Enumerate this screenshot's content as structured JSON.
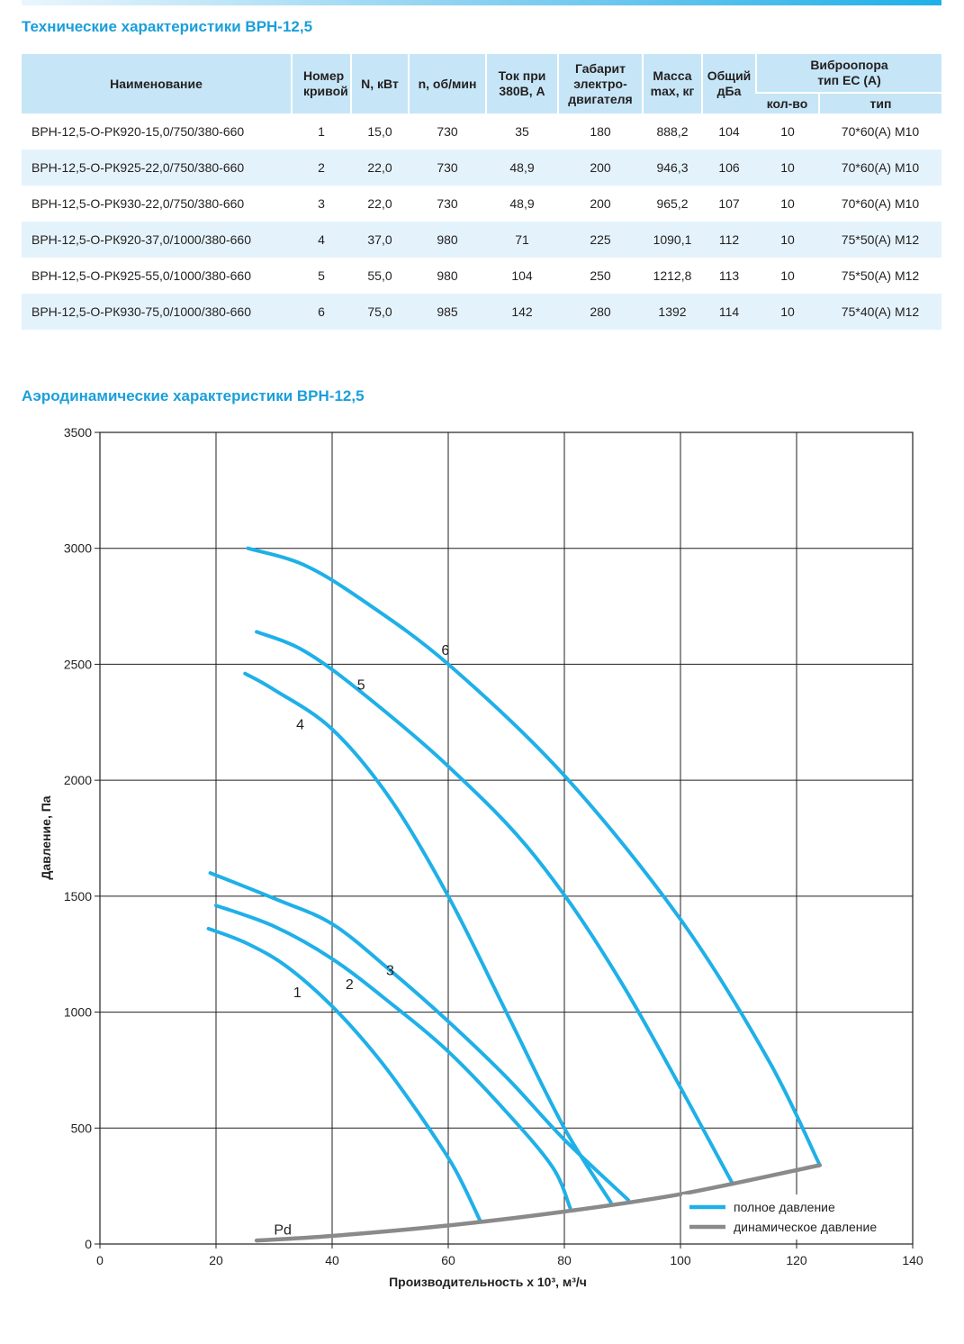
{
  "table_title": "Технические характеристики ВРН-12,5",
  "table": {
    "headers": {
      "name": "Наименование",
      "curve_no": "Номер кривой",
      "power": "N, кВт",
      "rpm": "n, об/мин",
      "current": "Ток при 380В, А",
      "motor_size": "Габарит электро-двигателя",
      "mass": "Масса max, кг",
      "noise": "Общий дБа",
      "vibro": "Виброопора тип ЕС (А)",
      "vibro_qty": "кол-во",
      "vibro_type": "тип"
    },
    "rows": [
      {
        "name": "ВРН-12,5-О-РК920-15,0/750/380-660",
        "curve": "1",
        "power": "15,0",
        "rpm": "730",
        "current": "35",
        "motor": "180",
        "mass": "888,2",
        "noise": "104",
        "qty": "10",
        "type": "70*60(А) М10"
      },
      {
        "name": "ВРН-12,5-О-РК925-22,0/750/380-660",
        "curve": "2",
        "power": "22,0",
        "rpm": "730",
        "current": "48,9",
        "motor": "200",
        "mass": "946,3",
        "noise": "106",
        "qty": "10",
        "type": "70*60(А) М10"
      },
      {
        "name": "ВРН-12,5-О-РК930-22,0/750/380-660",
        "curve": "3",
        "power": "22,0",
        "rpm": "730",
        "current": "48,9",
        "motor": "200",
        "mass": "965,2",
        "noise": "107",
        "qty": "10",
        "type": "70*60(А) М10"
      },
      {
        "name": "ВРН-12,5-О-РК920-37,0/1000/380-660",
        "curve": "4",
        "power": "37,0",
        "rpm": "980",
        "current": "71",
        "motor": "225",
        "mass": "1090,1",
        "noise": "112",
        "qty": "10",
        "type": "75*50(А) М12"
      },
      {
        "name": "ВРН-12,5-О-РК925-55,0/1000/380-660",
        "curve": "5",
        "power": "55,0",
        "rpm": "980",
        "current": "104",
        "motor": "250",
        "mass": "1212,8",
        "noise": "113",
        "qty": "10",
        "type": "75*50(А) М12"
      },
      {
        "name": "ВРН-12,5-О-РК930-75,0/1000/380-660",
        "curve": "6",
        "power": "75,0",
        "rpm": "985",
        "current": "142",
        "motor": "280",
        "mass": "1392",
        "noise": "114",
        "qty": "10",
        "type": "75*40(А) М12"
      }
    ]
  },
  "chart_title": "Аэродинамические характеристики ВРН-12,5",
  "colors": {
    "accent": "#1a9fdb",
    "header_bg": "#c6e6f7",
    "row_alt": "#e4f3fb",
    "total_pressure": "#1fb0e8",
    "dynamic_pressure": "#8a8a8a"
  },
  "chart_data": {
    "type": "line",
    "xlabel": "Производительность х 10³, м³/ч",
    "ylabel": "Давление, Па",
    "xlim": [
      0,
      140
    ],
    "ylim": [
      0,
      3500
    ],
    "xticks": [
      "0",
      "20",
      "40",
      "60",
      "80",
      "100",
      "120",
      "140"
    ],
    "yticks": [
      "0",
      "500",
      "1000",
      "1500",
      "2000",
      "2500",
      "3000",
      "3500"
    ],
    "grid": true,
    "legend_position": "bottom-right",
    "legend": [
      {
        "label": "полное давление",
        "color": "#1fb0e8"
      },
      {
        "label": "динамическое давление",
        "color": "#8a8a8a"
      }
    ],
    "series": [
      {
        "name": "1",
        "label_at": [
          34,
          1065
        ],
        "points": [
          [
            18.7,
            1360
          ],
          [
            25,
            1300
          ],
          [
            32,
            1200
          ],
          [
            40,
            1025
          ],
          [
            48,
            800
          ],
          [
            55,
            560
          ],
          [
            61,
            330
          ],
          [
            65.5,
            100
          ]
        ]
      },
      {
        "name": "2",
        "label_at": [
          43,
          1100
        ],
        "points": [
          [
            20,
            1460
          ],
          [
            30,
            1370
          ],
          [
            40,
            1230
          ],
          [
            50,
            1040
          ],
          [
            60,
            830
          ],
          [
            70,
            570
          ],
          [
            78,
            330
          ],
          [
            81,
            155
          ]
        ]
      },
      {
        "name": "3",
        "label_at": [
          50,
          1160
        ],
        "points": [
          [
            19,
            1600
          ],
          [
            30,
            1490
          ],
          [
            40,
            1380
          ],
          [
            50,
            1180
          ],
          [
            60,
            960
          ],
          [
            70,
            720
          ],
          [
            80,
            450
          ],
          [
            91,
            190
          ]
        ]
      },
      {
        "name": "4",
        "label_at": [
          34.5,
          2220
        ],
        "points": [
          [
            25,
            2460
          ],
          [
            30,
            2390
          ],
          [
            40,
            2220
          ],
          [
            50,
            1920
          ],
          [
            60,
            1500
          ],
          [
            70,
            1000
          ],
          [
            80,
            500
          ],
          [
            88,
            180
          ]
        ]
      },
      {
        "name": "5",
        "label_at": [
          45,
          2390
        ],
        "points": [
          [
            27,
            2640
          ],
          [
            35,
            2560
          ],
          [
            45,
            2380
          ],
          [
            60,
            2060
          ],
          [
            75,
            1670
          ],
          [
            90,
            1120
          ],
          [
            109,
            260
          ]
        ]
      },
      {
        "name": "6",
        "label_at": [
          59.5,
          2540
        ],
        "points": [
          [
            25.5,
            3000
          ],
          [
            35,
            2930
          ],
          [
            45,
            2780
          ],
          [
            60,
            2500
          ],
          [
            80,
            2020
          ],
          [
            100,
            1400
          ],
          [
            115,
            800
          ],
          [
            124,
            340
          ]
        ]
      },
      {
        "name": "Pd",
        "label_at": [
          31.5,
          40
        ],
        "points": [
          [
            27,
            15
          ],
          [
            40,
            35
          ],
          [
            60,
            80
          ],
          [
            80,
            140
          ],
          [
            100,
            215
          ],
          [
            124,
            340
          ]
        ]
      }
    ]
  }
}
